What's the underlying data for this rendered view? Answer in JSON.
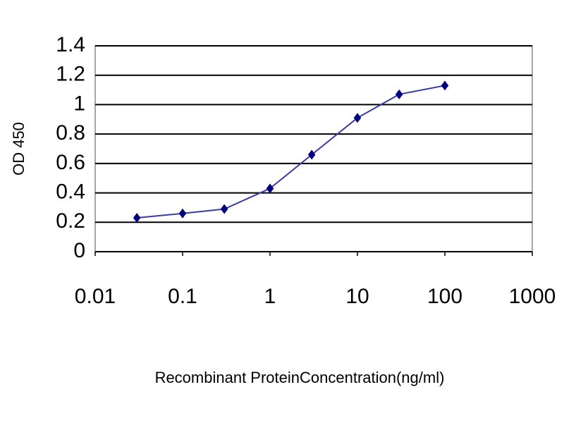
{
  "chart_data": {
    "type": "line",
    "x_label": "Recombinant ProteinConcentration(ng/ml)",
    "y_label": "OD 450",
    "x": [
      0.03,
      0.1,
      0.3,
      1,
      3,
      10,
      30,
      100
    ],
    "series": [
      {
        "color": "#000080",
        "values": [
          0.23,
          0.26,
          0.29,
          0.43,
          0.66,
          0.91,
          1.07,
          1.13
        ]
      }
    ],
    "x_log": true,
    "xlim": [
      0.01,
      1000
    ],
    "xticks": [
      0.01,
      0.1,
      1,
      10,
      100,
      1000
    ],
    "ylim": [
      0,
      1.4
    ],
    "yticks": [
      0,
      0.2,
      0.4,
      0.6,
      0.8,
      1,
      1.2,
      1.4
    ],
    "grid": true
  }
}
